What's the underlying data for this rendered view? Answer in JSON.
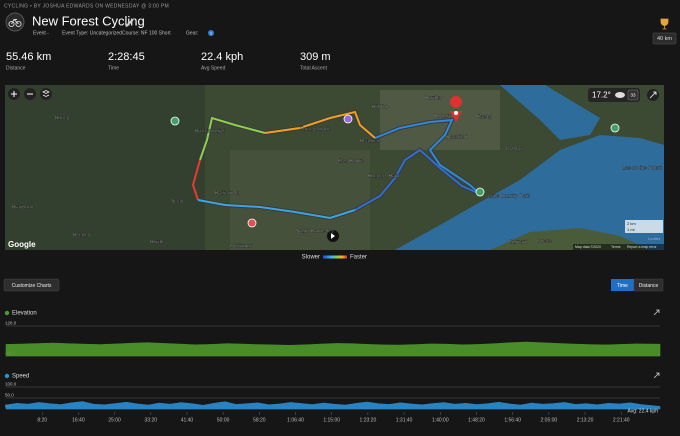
{
  "header": {
    "byline": "CYCLING • BY JOSHUA EDWARDS ON WEDNESDAY @ 3:00 PM",
    "title": "New Forest Cycling",
    "meta": [
      "Event -",
      "Event Type: Uncategorized",
      "Course: NF 100 Short",
      "Gear:"
    ],
    "gear_count": "1",
    "badge": "40 km"
  },
  "stats": [
    {
      "value": "55.46 km",
      "label": "Distance"
    },
    {
      "value": "2:28:45",
      "label": "Time"
    },
    {
      "value": "22.4 kph",
      "label": "Avg Speed"
    },
    {
      "value": "309 m",
      "label": "Total Ascent"
    }
  ],
  "map": {
    "temperature": "17.2°",
    "wind": "33",
    "labels": [
      "Burley",
      "Brockenhurst",
      "Furzey Lodge",
      "Hill Top",
      "Hardley",
      "Holbury",
      "Fawley",
      "Blackfield",
      "Calshot",
      "Lepe Country Park",
      "Lee-on-the-Solent",
      "East Boldre",
      "Bucklers Hard",
      "Battramsley",
      "Sway",
      "Lymington",
      "South Baddesley",
      "Hordle",
      "Beckley",
      "Bransgore",
      "Gurnard",
      "Cowes",
      "Beaulieu"
    ],
    "attribution": "Google",
    "copyright": "Map data ©2020",
    "terms": "Terms",
    "report": "Report a map error",
    "scale_km": "2 km",
    "scale_mi": "1 mi",
    "leaflet": "Leaflet"
  },
  "legend": {
    "slow": "Slower",
    "fast": "Faster"
  },
  "controls": {
    "customize": "Customize Charts",
    "time": "Time",
    "distance": "Distance"
  },
  "charts": {
    "xlim": [
      0,
      8925
    ],
    "xticks": [
      {
        "value": 500,
        "label": "8:20"
      },
      {
        "value": 1000,
        "label": "16:40"
      },
      {
        "value": 1500,
        "label": "25:00"
      },
      {
        "value": 2000,
        "label": "33:20"
      },
      {
        "value": 2500,
        "label": "41:40"
      },
      {
        "value": 3000,
        "label": "50:00"
      },
      {
        "value": 3500,
        "label": "58:20"
      },
      {
        "value": 4000,
        "label": "1:06:40"
      },
      {
        "value": 4500,
        "label": "1:15:00"
      },
      {
        "value": 5000,
        "label": "1:23:20"
      },
      {
        "value": 5500,
        "label": "1:31:40"
      },
      {
        "value": 6000,
        "label": "1:40:00"
      },
      {
        "value": 6500,
        "label": "1:48:20"
      },
      {
        "value": 7000,
        "label": "1:56:40"
      },
      {
        "value": 7500,
        "label": "2:05:00"
      },
      {
        "value": 8000,
        "label": "2:13:20"
      },
      {
        "value": 8500,
        "label": "2:21:40"
      }
    ],
    "elevation": {
      "title": "Elevation",
      "color": "#4f9a2c",
      "ylim": [
        -48,
        128
      ],
      "yticks": [
        {
          "value": -48,
          "label": "-48.0"
        },
        {
          "value": 128,
          "label": "128.0"
        }
      ],
      "values": [
        20,
        22,
        25,
        28,
        24,
        21,
        19,
        23,
        27,
        30,
        26,
        22,
        18,
        20,
        24,
        22,
        19,
        17,
        15,
        18,
        22,
        26,
        24,
        20,
        17,
        16,
        19,
        23,
        21,
        18,
        20,
        24,
        30,
        34,
        30,
        26,
        22,
        19,
        17,
        20,
        23,
        21
      ]
    },
    "speed": {
      "title": "Speed",
      "color": "#2b8fd6",
      "ylim": [
        0,
        100
      ],
      "yticks": [
        {
          "value": 0,
          "label": "0.0"
        },
        {
          "value": 50,
          "label": "50.0"
        },
        {
          "value": 100,
          "label": "100.0"
        }
      ],
      "average_label": "Avg: 22.4 kph",
      "values": [
        18,
        26,
        22,
        30,
        24,
        20,
        28,
        34,
        22,
        19,
        25,
        31,
        23,
        18,
        27,
        22,
        29,
        24,
        17,
        26,
        33,
        21,
        24,
        28,
        19,
        23,
        30,
        25,
        20,
        27,
        22,
        18,
        26,
        32,
        24,
        21,
        28,
        23,
        19,
        25,
        29,
        22,
        26,
        20,
        24,
        31,
        23,
        18,
        27,
        22,
        25,
        30,
        21,
        24,
        19,
        26,
        23,
        28,
        20,
        12
      ]
    }
  }
}
